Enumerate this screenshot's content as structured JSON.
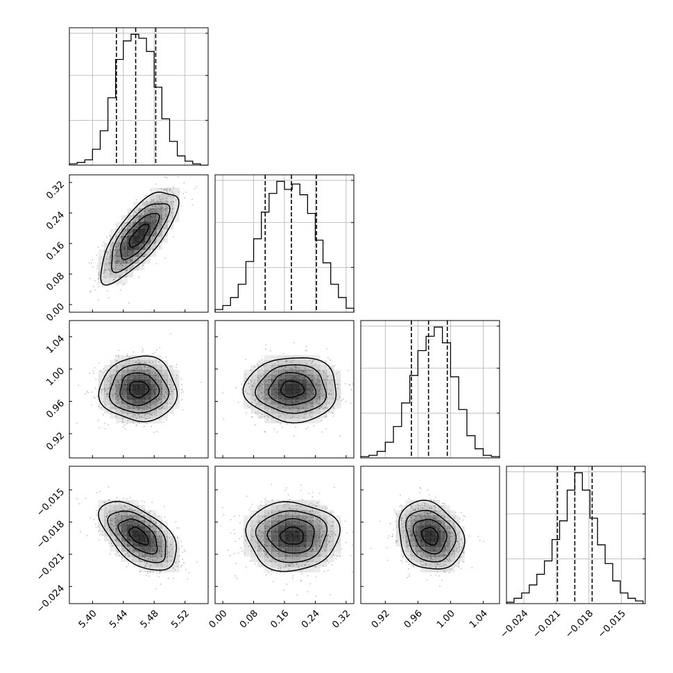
{
  "chart_data": {
    "type": "corner",
    "parameters": [
      {
        "range": [
          5.37,
          5.55
        ],
        "ticks": [
          5.4,
          5.44,
          5.48,
          5.52
        ],
        "tick_labels": [
          "5.40",
          "5.44",
          "5.48",
          "5.52"
        ],
        "quantiles": [
          5.431,
          5.456,
          5.482
        ],
        "hist": {
          "bin_edges": [
            5.37,
            5.38,
            5.39,
            5.4,
            5.41,
            5.42,
            5.43,
            5.44,
            5.45,
            5.46,
            5.47,
            5.48,
            5.49,
            5.5,
            5.51,
            5.52,
            5.53,
            5.54,
            5.55
          ],
          "counts": [
            1,
            2,
            4,
            12,
            26,
            51,
            80,
            94,
            99,
            96,
            86,
            59,
            35,
            18,
            7,
            3,
            1,
            0
          ]
        }
      },
      {
        "range": [
          -0.02,
          0.34
        ],
        "ticks": [
          0.0,
          0.08,
          0.16,
          0.24,
          0.32
        ],
        "tick_labels": [
          "0.00",
          "0.08",
          "0.16",
          "0.24",
          "0.32"
        ],
        "quantiles": [
          0.11,
          0.178,
          0.243
        ],
        "hist": {
          "bin_edges": [
            -0.02,
            0.0,
            0.02,
            0.04,
            0.06,
            0.08,
            0.1,
            0.12,
            0.14,
            0.16,
            0.18,
            0.2,
            0.22,
            0.24,
            0.26,
            0.28,
            0.3,
            0.32,
            0.34
          ],
          "counts": [
            2,
            5,
            11,
            21,
            38,
            55,
            75,
            89,
            98,
            92,
            96,
            88,
            74,
            54,
            37,
            21,
            11,
            3
          ]
        }
      },
      {
        "range": [
          0.89,
          1.06
        ],
        "ticks": [
          0.92,
          0.96,
          1.0,
          1.04
        ],
        "tick_labels": [
          "0.92",
          "0.96",
          "1.00",
          "1.04"
        ],
        "quantiles": [
          0.952,
          0.973,
          0.996
        ],
        "hist": {
          "bin_edges": [
            0.89,
            0.9,
            0.91,
            0.92,
            0.93,
            0.94,
            0.95,
            0.96,
            0.97,
            0.98,
            0.99,
            1.0,
            1.01,
            1.02,
            1.03,
            1.04,
            1.05,
            1.06
          ],
          "counts": [
            1,
            2,
            5,
            12,
            24,
            42,
            63,
            82,
            93,
            100,
            88,
            62,
            37,
            17,
            7,
            2,
            1
          ]
        }
      },
      {
        "range": [
          -0.0256,
          -0.0128
        ],
        "ticks": [
          -0.024,
          -0.021,
          -0.018,
          -0.015
        ],
        "tick_labels": [
          "−0.024",
          "−0.021",
          "−0.018",
          "−0.015"
        ],
        "quantiles": [
          -0.0209,
          -0.0193,
          -0.0177
        ],
        "hist": {
          "bin_edges": [
            -0.0256,
            -0.0249,
            -0.0242,
            -0.0235,
            -0.0228,
            -0.0221,
            -0.0214,
            -0.0207,
            -0.02,
            -0.0193,
            -0.0186,
            -0.0179,
            -0.0172,
            -0.0165,
            -0.0158,
            -0.0151,
            -0.0144,
            -0.0137,
            -0.013
          ],
          "counts": [
            1,
            4,
            8,
            14,
            22,
            32,
            48,
            62,
            85,
            98,
            85,
            64,
            44,
            30,
            17,
            8,
            4,
            2
          ]
        }
      }
    ],
    "pairs": [
      {
        "x": 0,
        "y": 1,
        "center": [
          5.46,
          0.18
        ],
        "sigma": [
          0.025,
          0.06
        ],
        "rho": 0.75
      },
      {
        "x": 0,
        "y": 2,
        "center": [
          5.46,
          0.975
        ],
        "sigma": [
          0.025,
          0.02
        ],
        "rho": 0.0
      },
      {
        "x": 1,
        "y": 2,
        "center": [
          0.18,
          0.975
        ],
        "sigma": [
          0.06,
          0.02
        ],
        "rho": 0.0
      },
      {
        "x": 0,
        "y": 3,
        "center": [
          5.46,
          -0.0193
        ],
        "sigma": [
          0.025,
          0.0016
        ],
        "rho": -0.55
      },
      {
        "x": 1,
        "y": 3,
        "center": [
          0.18,
          -0.0193
        ],
        "sigma": [
          0.06,
          0.0016
        ],
        "rho": 0.0
      },
      {
        "x": 2,
        "y": 3,
        "center": [
          0.975,
          -0.0193
        ],
        "sigma": [
          0.02,
          0.0016
        ],
        "rho": -0.2
      }
    ],
    "grid": true,
    "colors": {
      "axes": "#000000",
      "grid": "#b0b0b0",
      "scatter": "#8c8c8c",
      "contour": "#000000"
    }
  }
}
